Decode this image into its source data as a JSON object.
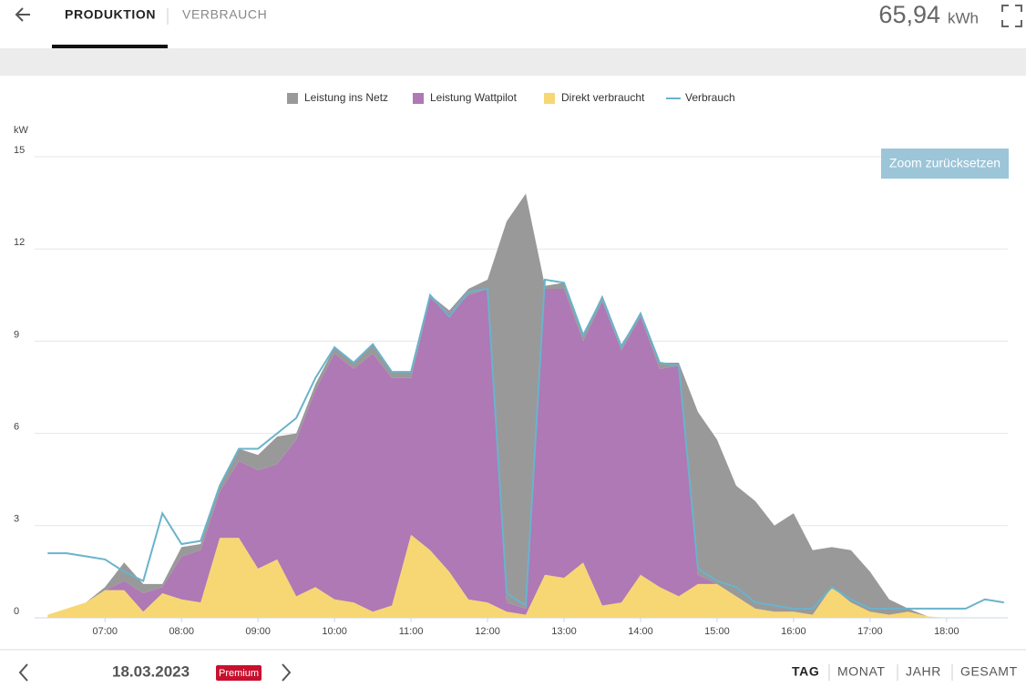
{
  "header": {
    "tabs": [
      "PRODUKTION",
      "VERBRAUCH"
    ],
    "total_value": "65,94",
    "total_unit": "kWh"
  },
  "chart_data": {
    "type": "area",
    "stacked": true,
    "y_label": "kW",
    "zoom_button": "Zoom zurücksetzen",
    "grid": true,
    "legend": "top",
    "x": [
      6.25,
      6.5,
      6.75,
      7,
      7.25,
      7.5,
      7.75,
      8,
      8.25,
      8.5,
      8.75,
      9,
      9.25,
      9.5,
      9.75,
      10,
      10.25,
      10.5,
      10.75,
      11,
      11.25,
      11.5,
      11.75,
      12,
      12.25,
      12.5,
      12.75,
      13,
      13.25,
      13.5,
      13.75,
      14,
      14.25,
      14.5,
      14.75,
      15,
      15.25,
      15.5,
      15.75,
      16,
      16.25,
      16.5,
      16.75,
      17,
      17.25,
      17.5,
      17.75,
      18,
      18.25,
      18.5,
      18.75
    ],
    "xlim": [
      6.08,
      18.8
    ],
    "xticks": [
      {
        "value": 7,
        "label": "07:00"
      },
      {
        "value": 8,
        "label": "08:00"
      },
      {
        "value": 9,
        "label": "09:00"
      },
      {
        "value": 10,
        "label": "10:00"
      },
      {
        "value": 11,
        "label": "11:00"
      },
      {
        "value": 12,
        "label": "12:00"
      },
      {
        "value": 13,
        "label": "13:00"
      },
      {
        "value": 14,
        "label": "14:00"
      },
      {
        "value": 15,
        "label": "15:00"
      },
      {
        "value": 16,
        "label": "16:00"
      },
      {
        "value": 17,
        "label": "17:00"
      },
      {
        "value": 18,
        "label": "18:00"
      }
    ],
    "ylim": [
      0,
      15
    ],
    "yticks": [
      0,
      3,
      6,
      9,
      12,
      15
    ],
    "series": [
      {
        "name": "Leistung ins Netz",
        "type": "area",
        "color": "#999999",
        "values": [
          0,
          0,
          0,
          0.1,
          0.6,
          0.3,
          0.1,
          0.3,
          0.2,
          0.2,
          0.4,
          0.5,
          0.9,
          0.2,
          0.2,
          0.2,
          0.2,
          0.3,
          0.2,
          0.2,
          0.1,
          0.1,
          0.2,
          0.3,
          12.4,
          13.5,
          0.1,
          0.2,
          0.2,
          0.2,
          0.2,
          0.1,
          0.2,
          0.1,
          5.3,
          4.7,
          3.6,
          3.5,
          2.8,
          3.2,
          2.1,
          1.3,
          1.7,
          1.3,
          0.5,
          0.1,
          0,
          0,
          0,
          0,
          0
        ]
      },
      {
        "name": "Leistung Wattpilot",
        "type": "area",
        "color": "#ae79b4",
        "values": [
          0,
          0,
          0,
          0,
          0.3,
          0.6,
          0.2,
          1.4,
          1.7,
          1.5,
          2.5,
          3.2,
          3.1,
          5.1,
          6.4,
          8.0,
          7.6,
          8.4,
          7.4,
          5.1,
          8.2,
          8.4,
          9.9,
          10.2,
          0.3,
          0.2,
          9.3,
          9.4,
          7.2,
          9.9,
          8.2,
          8.4,
          7.1,
          7.5,
          0.3,
          0,
          0,
          0,
          0,
          0,
          0,
          0,
          0,
          0,
          0,
          0,
          0,
          0,
          0,
          0,
          0
        ]
      },
      {
        "name": "Direkt verbraucht",
        "type": "area",
        "color": "#f7d774",
        "values": [
          0.1,
          0.3,
          0.5,
          0.9,
          0.9,
          0.2,
          0.8,
          0.6,
          0.5,
          2.6,
          2.6,
          1.6,
          1.9,
          0.7,
          1.0,
          0.6,
          0.5,
          0.2,
          0.4,
          2.7,
          2.2,
          1.5,
          0.6,
          0.5,
          0.2,
          0.1,
          1.4,
          1.3,
          1.8,
          0.4,
          0.5,
          1.4,
          1.0,
          0.7,
          1.1,
          1.1,
          0.7,
          0.3,
          0.2,
          0.2,
          0.1,
          1.0,
          0.5,
          0.2,
          0.1,
          0.2,
          0.05,
          0,
          0,
          0,
          0
        ]
      },
      {
        "name": "Verbrauch",
        "type": "line",
        "color": "#6ab3cc",
        "values": [
          2.1,
          2.1,
          2.0,
          1.9,
          1.5,
          1.2,
          3.4,
          2.4,
          2.5,
          4.3,
          5.5,
          5.5,
          6.0,
          6.5,
          7.8,
          8.8,
          8.3,
          8.9,
          8.0,
          8.0,
          10.5,
          9.8,
          10.6,
          10.7,
          0.8,
          0.4,
          11.0,
          10.9,
          9.2,
          10.4,
          8.8,
          9.9,
          8.3,
          8.2,
          1.6,
          1.2,
          1.0,
          0.5,
          0.4,
          0.3,
          0.3,
          1.0,
          0.6,
          0.3,
          0.3,
          0.3,
          0.3,
          0.3,
          0.3,
          0.6,
          0.5
        ]
      }
    ]
  },
  "footer": {
    "date": "18.03.2023",
    "badge": "Premium",
    "periods": [
      "TAG",
      "MONAT",
      "JAHR",
      "GESAMT"
    ]
  }
}
